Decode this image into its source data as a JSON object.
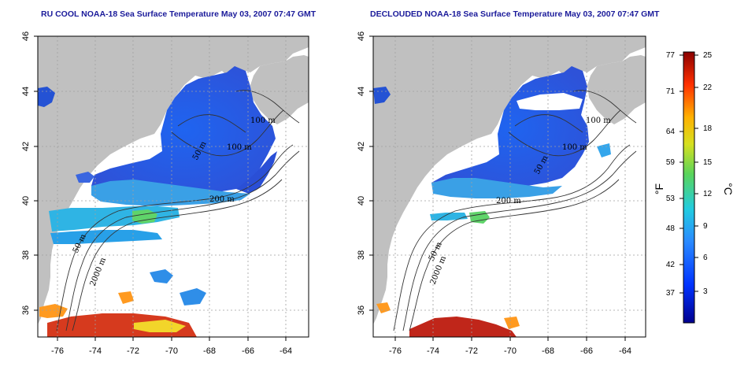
{
  "panels": [
    {
      "id": "left",
      "title": "RU COOL NOAA-18 Sea Surface Temperature May 03, 2007 07:47 GMT",
      "x_ticks": [
        "-76",
        "-74",
        "-72",
        "-70",
        "-68",
        "-66",
        "-64"
      ],
      "y_ticks": [
        "46",
        "44",
        "42",
        "40",
        "38",
        "36"
      ],
      "contour_labels": [
        "200 m",
        "100 m",
        "100 m",
        "50 m",
        "50 m",
        "2000 m"
      ]
    },
    {
      "id": "right",
      "title": "DECLOUDED NOAA-18 Sea Surface Temperature May 03, 2007 07:47 GMT",
      "x_ticks": [
        "-76",
        "-74",
        "-72",
        "-70",
        "-68",
        "-66",
        "-64"
      ],
      "y_ticks": [
        "46",
        "44",
        "42",
        "40",
        "38",
        "36"
      ],
      "contour_labels": [
        "200 m",
        "100 m",
        "100 m",
        "50 m",
        "50 m",
        "2000 m"
      ]
    }
  ],
  "colorbar": {
    "fahrenheit_ticks": [
      "77",
      "71",
      "64",
      "59",
      "53",
      "48",
      "42",
      "37"
    ],
    "celsius_ticks": [
      "25",
      "22",
      "18",
      "15",
      "12",
      "9",
      "6",
      "3"
    ],
    "fahrenheit_unit": "°F",
    "celsius_unit": "°C"
  },
  "colors": {
    "land": "#c0c0c0",
    "water_nodata": "#ffffff",
    "title": "#1a1a9a",
    "grid": "#a0a0a0",
    "cold": "#2a5ae6",
    "warm": "#d02a1a"
  },
  "map": {
    "lon_range": [
      -77,
      -63
    ],
    "lat_range": [
      35,
      46
    ]
  }
}
